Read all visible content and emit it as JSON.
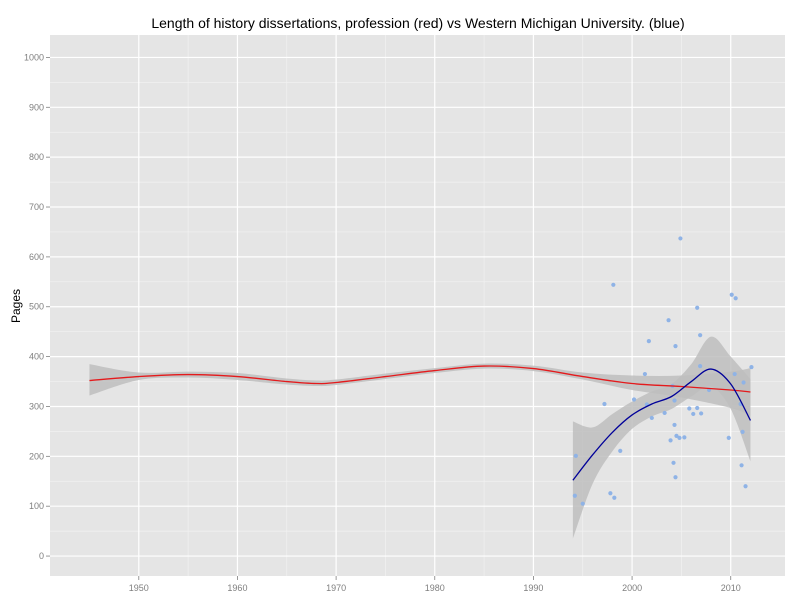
{
  "chart_data": {
    "type": "scatter",
    "title": "Length of history dissertations, profession (red) vs Western Michigan University. (blue)",
    "xlabel": "",
    "ylabel": "Pages",
    "xlim": [
      1941,
      2015.5
    ],
    "ylim": [
      -40,
      1045
    ],
    "xticks": [
      1950,
      1960,
      1970,
      1980,
      1990,
      2000,
      2010
    ],
    "yticks": [
      0,
      100,
      200,
      300,
      400,
      500,
      600,
      700,
      800,
      900,
      1000
    ],
    "grid": true,
    "legend": "none",
    "colors": {
      "panel_bg": "#e5e5e5",
      "grid_major": "#ffffff",
      "grid_minor": "#f2f2f2",
      "band": "#bebebe",
      "profession_line": "#e41a1c",
      "wmu_line": "#000099",
      "points": "#8fb3e6"
    },
    "series": [
      {
        "key": "profession",
        "type": "smooth_line",
        "color": "#e41a1c",
        "x": [
          1945,
          1950,
          1955,
          1960,
          1965,
          1968,
          1970,
          1975,
          1980,
          1985,
          1990,
          1995,
          2000,
          2005,
          2010,
          2012
        ],
        "y": [
          352,
          360,
          364,
          360,
          350,
          346,
          348,
          360,
          372,
          381,
          376,
          360,
          346,
          340,
          333,
          329
        ],
        "lower": [
          322,
          353,
          358,
          353,
          344,
          341,
          343,
          355,
          367,
          376,
          371,
          354,
          333,
          318,
          297,
          281
        ],
        "upper": [
          385,
          368,
          370,
          367,
          356,
          352,
          354,
          366,
          377,
          386,
          382,
          368,
          362,
          362,
          370,
          377
        ]
      },
      {
        "key": "wmu",
        "type": "smooth_line",
        "color": "#000099",
        "x": [
          1994,
          1996,
          1998,
          2000,
          2002,
          2004,
          2006,
          2008,
          2010,
          2012
        ],
        "y": [
          152,
          203,
          248,
          283,
          305,
          320,
          350,
          375,
          345,
          272
        ],
        "lower": [
          35,
          145,
          210,
          255,
          280,
          295,
          320,
          340,
          295,
          190
        ],
        "upper": [
          270,
          258,
          285,
          310,
          330,
          345,
          385,
          440,
          400,
          355
        ]
      },
      {
        "key": "wmu_points",
        "type": "scatter",
        "color": "#8fb3e6",
        "points": [
          [
            1994.2,
            121
          ],
          [
            1994.3,
            201
          ],
          [
            1995,
            105
          ],
          [
            1997.8,
            126
          ],
          [
            1998.2,
            117
          ],
          [
            1998.1,
            544
          ],
          [
            1997.2,
            305
          ],
          [
            1998.8,
            211
          ],
          [
            2000.2,
            314
          ],
          [
            2001.3,
            365
          ],
          [
            2001.5,
            304
          ],
          [
            2001.7,
            431
          ],
          [
            2002,
            277
          ],
          [
            2003.3,
            287
          ],
          [
            2003.7,
            473
          ],
          [
            2003.9,
            232
          ],
          [
            2004.1,
            341
          ],
          [
            2004.2,
            187
          ],
          [
            2004.3,
            312
          ],
          [
            2004.3,
            263
          ],
          [
            2004.4,
            158
          ],
          [
            2004.4,
            421
          ],
          [
            2004.5,
            241
          ],
          [
            2004.8,
            237
          ],
          [
            2004.9,
            637
          ],
          [
            2005.3,
            238
          ],
          [
            2005.8,
            296
          ],
          [
            2006.2,
            285
          ],
          [
            2006.6,
            297
          ],
          [
            2006.6,
            498
          ],
          [
            2006.9,
            381
          ],
          [
            2006.9,
            443
          ],
          [
            2007,
            286
          ],
          [
            2007.8,
            333
          ],
          [
            2009.8,
            237
          ],
          [
            2010.1,
            524
          ],
          [
            2010.5,
            517
          ],
          [
            2010.4,
            365
          ],
          [
            2011,
            305
          ],
          [
            2011.1,
            182
          ],
          [
            2011.2,
            249
          ],
          [
            2011.3,
            348
          ],
          [
            2011.5,
            140
          ],
          [
            2012.1,
            379
          ]
        ]
      }
    ]
  }
}
